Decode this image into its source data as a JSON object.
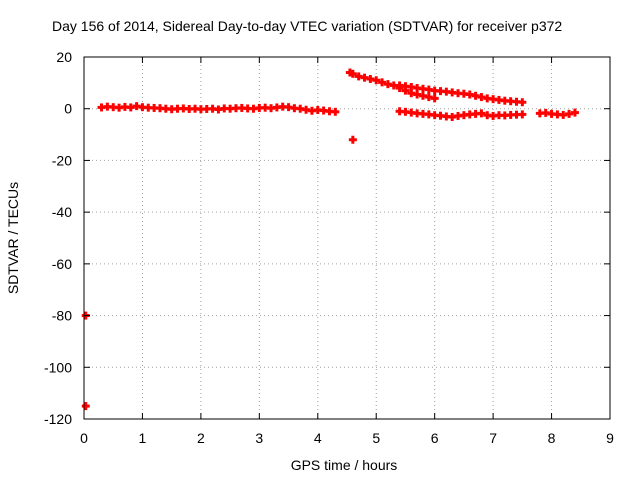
{
  "chart_data": {
    "type": "scatter",
    "title": "Day 156 of 2014, Sidereal Day-to-day VTEC variation (SDTVAR) for receiver p372",
    "xlabel": "GPS time / hours",
    "ylabel": "SDTVAR / TECUs",
    "xlim": [
      0,
      9
    ],
    "ylim": [
      -120,
      20
    ],
    "xticks": [
      0,
      1,
      2,
      3,
      4,
      5,
      6,
      7,
      8,
      9
    ],
    "yticks": [
      20,
      0,
      -20,
      -40,
      -60,
      -80,
      -100,
      -120
    ],
    "grid": true,
    "marker_color": "#ff0000",
    "series": [
      {
        "name": "SDTVAR",
        "x": [
          0.3,
          0.4,
          0.5,
          0.6,
          0.7,
          0.8,
          0.9,
          1.0,
          1.1,
          1.2,
          1.3,
          1.4,
          1.5,
          1.6,
          1.7,
          1.8,
          1.9,
          2.0,
          2.1,
          2.2,
          2.3,
          2.4,
          2.5,
          2.6,
          2.7,
          2.8,
          2.9,
          3.0,
          3.1,
          3.2,
          3.3,
          3.4,
          3.5,
          3.6,
          3.7,
          3.8,
          3.9,
          4.0,
          4.1,
          4.2,
          4.3,
          4.55,
          4.6,
          4.7,
          4.8,
          4.9,
          5.0,
          5.1,
          5.2,
          5.3,
          5.4,
          5.5,
          5.6,
          5.7,
          5.8,
          5.9,
          6.0,
          5.4,
          5.5,
          5.6,
          5.7,
          5.8,
          5.9,
          6.0,
          6.1,
          6.2,
          6.3,
          6.4,
          6.5,
          6.6,
          6.7,
          6.8,
          6.9,
          7.0,
          7.1,
          7.2,
          7.3,
          7.4,
          7.5,
          5.4,
          5.5,
          5.6,
          5.7,
          5.8,
          5.9,
          6.0,
          6.1,
          6.2,
          6.3,
          6.4,
          6.5,
          6.6,
          6.7,
          6.8,
          6.9,
          7.0,
          7.1,
          7.2,
          7.3,
          7.4,
          7.5,
          7.8,
          7.9,
          8.0,
          8.1,
          8.2,
          8.3,
          8.4,
          4.6,
          0.03,
          0.03
        ],
        "y": [
          0.5,
          0.8,
          0.6,
          0.4,
          0.7,
          0.5,
          1.0,
          0.6,
          0.4,
          0.3,
          0.2,
          0.0,
          -0.2,
          0.0,
          0.1,
          -0.1,
          0.0,
          -0.2,
          -0.1,
          0.0,
          -0.3,
          0.1,
          0.0,
          0.2,
          0.3,
          0.1,
          0.0,
          0.3,
          0.4,
          0.2,
          0.5,
          0.8,
          0.6,
          0.2,
          0.0,
          -0.4,
          -0.8,
          -0.5,
          -0.7,
          -1.0,
          -1.2,
          14.0,
          13.5,
          12.5,
          12.0,
          11.5,
          11.0,
          10.2,
          9.5,
          9.0,
          8.0,
          7.0,
          6.0,
          5.5,
          5.0,
          4.5,
          4.0,
          9.0,
          8.7,
          8.4,
          8.0,
          7.7,
          7.4,
          7.0,
          6.8,
          6.6,
          6.3,
          6.0,
          5.8,
          5.5,
          5.0,
          4.5,
          4.0,
          3.7,
          3.4,
          3.1,
          2.9,
          2.7,
          2.5,
          -1.0,
          -1.2,
          -1.5,
          -1.8,
          -2.0,
          -2.2,
          -2.5,
          -2.7,
          -3.0,
          -3.2,
          -2.8,
          -2.5,
          -2.2,
          -2.0,
          -1.8,
          -2.5,
          -2.8,
          -2.5,
          -2.6,
          -2.4,
          -2.3,
          -2.2,
          -1.8,
          -1.6,
          -2.0,
          -2.2,
          -2.4,
          -2.0,
          -1.5,
          -12.0,
          -80.0,
          -115.0
        ]
      }
    ]
  }
}
